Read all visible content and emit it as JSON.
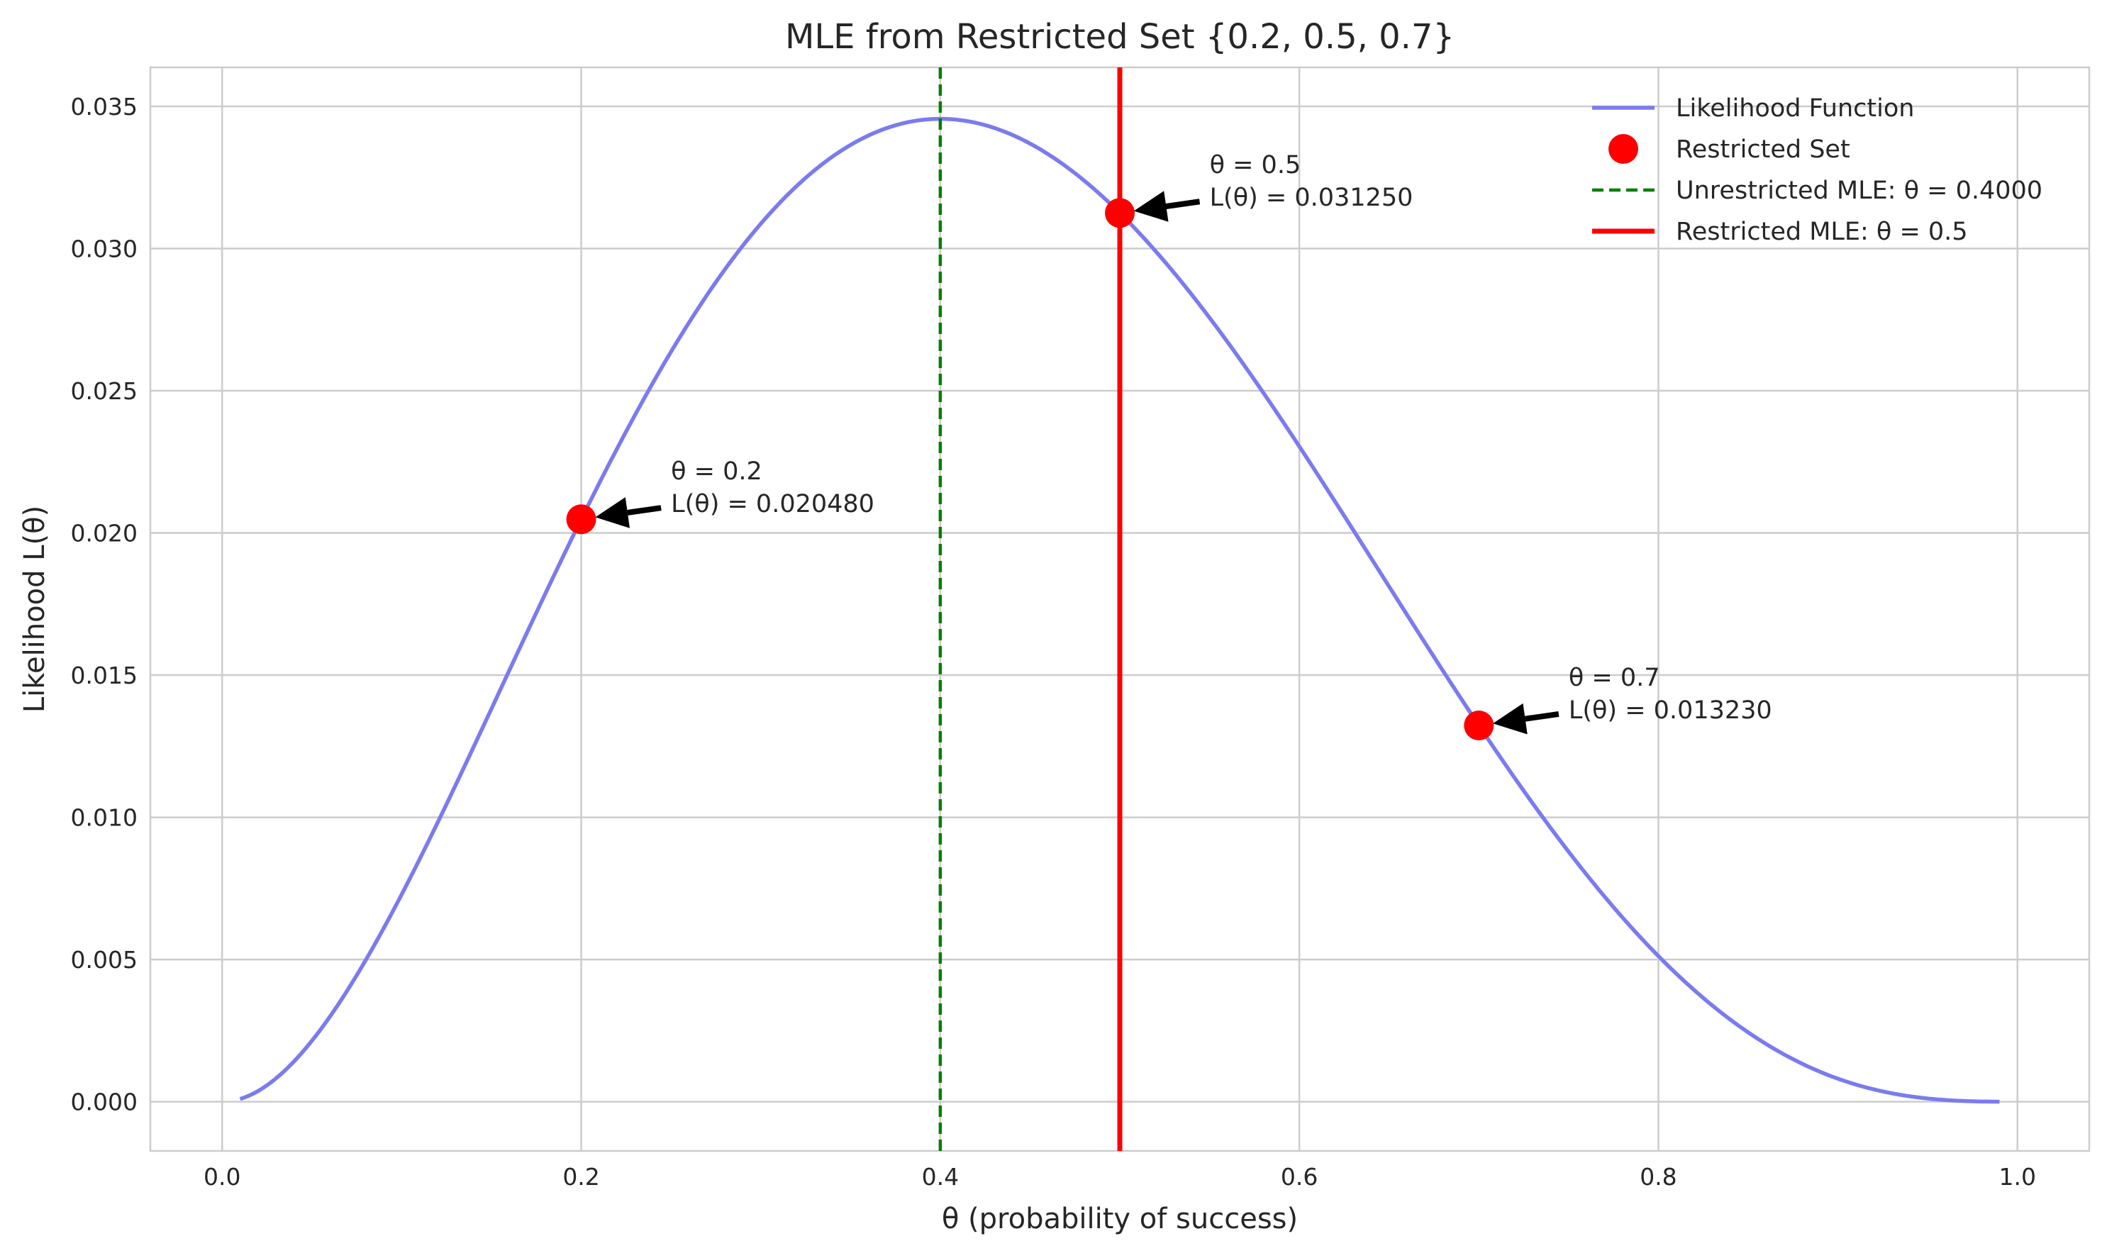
{
  "chart_data": {
    "type": "line",
    "title": "MLE from Restricted Set {0.2, 0.5, 0.7}",
    "xlabel": "θ (probability of success)",
    "ylabel": "Likelihood L(θ)",
    "xlim": [
      -0.04,
      1.04
    ],
    "ylim": [
      -0.00173,
      0.03637
    ],
    "x_ticks": [
      0.0,
      0.2,
      0.4,
      0.6,
      0.8,
      1.0
    ],
    "x_tick_labels": [
      "0.0",
      "0.2",
      "0.4",
      "0.6",
      "0.8",
      "1.0"
    ],
    "y_ticks": [
      0.0,
      0.005,
      0.01,
      0.015,
      0.02,
      0.025,
      0.03,
      0.035
    ],
    "y_tick_labels": [
      "0.000",
      "0.005",
      "0.010",
      "0.015",
      "0.020",
      "0.025",
      "0.030",
      "0.035"
    ],
    "grid": true,
    "legend_position": "top-right",
    "series": [
      {
        "name": "Likelihood Function",
        "kind": "line",
        "color": "#7b7bef",
        "likelihood_model": {
          "successes": 2,
          "failures": 3
        },
        "x_range": [
          0.01,
          0.99
        ]
      },
      {
        "name": "Restricted Set",
        "kind": "scatter",
        "color": "#ff0000",
        "points": [
          {
            "x": 0.2,
            "y": 0.02048
          },
          {
            "x": 0.5,
            "y": 0.03125
          },
          {
            "x": 0.7,
            "y": 0.01323
          }
        ]
      },
      {
        "name": "Unrestricted MLE: θ = 0.4000",
        "kind": "vline",
        "color": "#007f00",
        "style": "dashed",
        "x": 0.4
      },
      {
        "name": "Restricted MLE: θ = 0.5",
        "kind": "vline",
        "color": "#ff0000",
        "style": "solid",
        "x": 0.5
      }
    ],
    "annotations": [
      {
        "point": {
          "x": 0.2,
          "y": 0.02048
        },
        "text_pos": {
          "x": 0.25,
          "y": 0.02148
        },
        "lines": [
          "θ = 0.2",
          "L(θ) = 0.020480"
        ]
      },
      {
        "point": {
          "x": 0.5,
          "y": 0.03125
        },
        "text_pos": {
          "x": 0.55,
          "y": 0.03225
        },
        "lines": [
          "θ = 0.5",
          "L(θ) = 0.031250"
        ]
      },
      {
        "point": {
          "x": 0.7,
          "y": 0.01323
        },
        "text_pos": {
          "x": 0.75,
          "y": 0.01423
        },
        "lines": [
          "θ = 0.7",
          "L(θ) = 0.013230"
        ]
      }
    ]
  }
}
